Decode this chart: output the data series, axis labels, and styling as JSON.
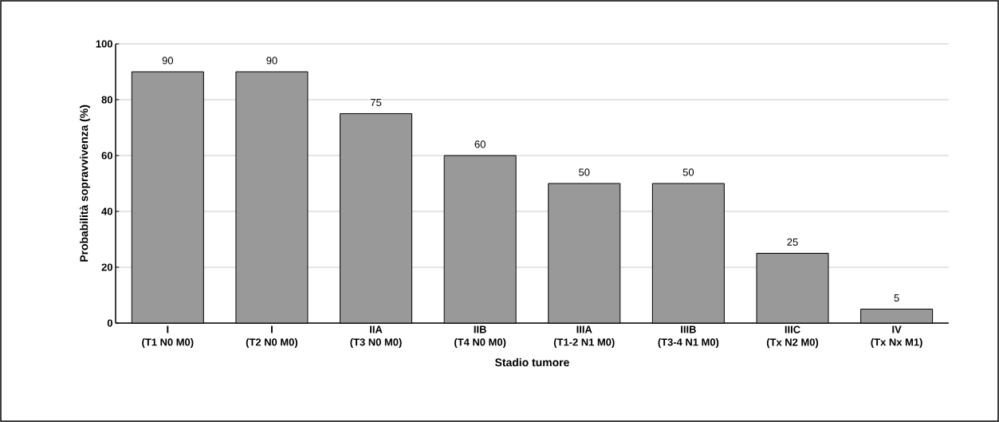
{
  "chart_data": {
    "type": "bar",
    "xlabel": "Stadio tumore",
    "ylabel": "Probabilità sopravvivenza (%)",
    "categories": [
      "I\n(T1 N0 M0)",
      "I\n(T2 N0 M0)",
      "IIA\n(T3 N0 M0)",
      "IIB\n(T4 N0 M0)",
      "IIIA\n(T1-2 N1 M0)",
      "IIIB\n(T3-4 N1 M0)",
      "IIIC\n(Tx N2 M0)",
      "IV\n(Tx Nx M1)"
    ],
    "values": [
      90,
      90,
      75,
      60,
      50,
      50,
      25,
      5
    ],
    "color": "#999999",
    "ylim": [
      0,
      100
    ],
    "yticks": [
      0,
      20,
      40,
      60,
      80,
      100
    ],
    "grid": "y",
    "data_labels": true
  }
}
